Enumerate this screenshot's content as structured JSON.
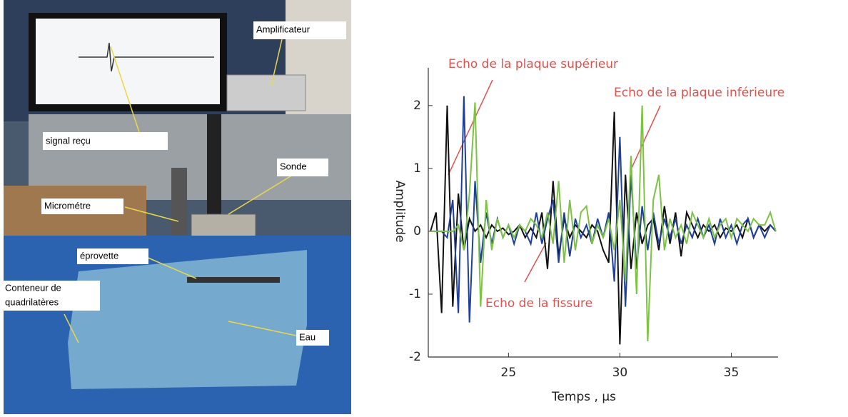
{
  "photo": {
    "labels": [
      "signal reçu",
      "Amplificateur",
      "Sonde",
      "Micrométre",
      "éprovette",
      "Conteneur de",
      "quadrilatères",
      "Eau"
    ]
  },
  "chart_data": {
    "type": "line",
    "xlabel": "Temps , μs",
    "ylabel": "Amplitude",
    "annotations": [
      "Echo de la plaque supérieur",
      "Echo de la plaque inférieure",
      "Echo de la fissure"
    ],
    "xlim": [
      21.4,
      37.1
    ],
    "ylim": [
      -2,
      2.6
    ],
    "xticks": [
      25,
      30,
      35
    ],
    "yticks": [
      -2,
      -1,
      0,
      1,
      2
    ],
    "x": [
      21.5,
      21.75,
      22,
      22.25,
      22.5,
      22.75,
      23,
      23.25,
      23.5,
      23.75,
      24,
      24.25,
      24.5,
      24.75,
      25,
      25.25,
      25.5,
      25.75,
      26,
      26.25,
      26.5,
      26.75,
      27,
      27.25,
      27.5,
      27.75,
      28,
      28.25,
      28.5,
      28.75,
      29,
      29.25,
      29.5,
      29.75,
      30,
      30.25,
      30.5,
      30.75,
      31,
      31.25,
      31.5,
      31.75,
      32,
      32.25,
      32.5,
      32.75,
      33,
      33.25,
      33.5,
      33.75,
      34,
      34.25,
      34.5,
      34.75,
      35,
      35.25,
      35.5,
      35.75,
      36,
      36.25,
      36.5,
      36.75,
      37
    ],
    "series": [
      {
        "color": "#111111",
        "values": [
          0,
          0.3,
          -1.3,
          2.0,
          -1.2,
          0.6,
          -0.3,
          0.2,
          0,
          0.1,
          -0.1,
          0.1,
          0,
          0.05,
          -0.05,
          0,
          0.1,
          -0.1,
          0.05,
          -0.1,
          0.3,
          -0.6,
          0.8,
          -0.4,
          0.2,
          -0.1,
          0.1,
          0,
          -0.1,
          0.1,
          0,
          -0.3,
          -0.5,
          1.9,
          -1.8,
          0.9,
          -0.6,
          0.3,
          -0.2,
          0.1,
          0.2,
          -0.3,
          0.4,
          -0.2,
          0.3,
          -0.4,
          0.3,
          0.1,
          -0.1,
          0.1,
          0,
          0.1,
          -0.1,
          0.05,
          0,
          0.1,
          -0.1,
          0.2,
          -0.1,
          0.1,
          0,
          0.1,
          0
        ]
      },
      {
        "color": "#1f3f9a",
        "values": [
          0,
          0,
          0,
          -0.1,
          0.5,
          -1.3,
          2.15,
          -1.45,
          0.8,
          -0.5,
          0.3,
          -0.2,
          0.2,
          -0.1,
          0.1,
          -0.2,
          0.1,
          0,
          -0.2,
          0.3,
          -0.2,
          0.2,
          0.5,
          -0.5,
          0.3,
          -0.4,
          0.2,
          -0.1,
          0.1,
          -0.2,
          0.2,
          -0.1,
          0.3,
          -0.8,
          1.5,
          -1.2,
          0.9,
          -0.6,
          0.4,
          -0.3,
          0.3,
          -0.2,
          0.2,
          -0.1,
          0.2,
          -0.2,
          0.1,
          -0.1,
          0.2,
          -0.1,
          0.1,
          -0.2,
          0.2,
          -0.1,
          0.1,
          -0.2,
          0.1,
          0.2,
          -0.1,
          0.1,
          -0.1,
          0.1,
          0
        ]
      },
      {
        "color": "#7dc242",
        "values": [
          0,
          0,
          0,
          0,
          0,
          0.1,
          -0.3,
          0.6,
          2.05,
          -1.2,
          0.5,
          -0.3,
          0.2,
          -0.1,
          0.1,
          -0.1,
          0.1,
          0,
          0.2,
          0.1,
          -0.1,
          0.3,
          -0.2,
          0.8,
          -0.5,
          0.5,
          -0.3,
          0.3,
          0.4,
          -0.2,
          0.1,
          -0.1,
          0.2,
          -0.3,
          0.5,
          -0.8,
          1.2,
          -1.0,
          2.0,
          -1.75,
          0.5,
          0.9,
          -0.3,
          0.2,
          -0.1,
          0.1,
          -0.2,
          0.3,
          0.1,
          -0.1,
          0.2,
          -0.1,
          0.1,
          0.2,
          -0.1,
          0.2,
          0.1,
          0,
          0.2,
          0.1,
          0.1,
          0.3,
          0
        ]
      }
    ]
  }
}
